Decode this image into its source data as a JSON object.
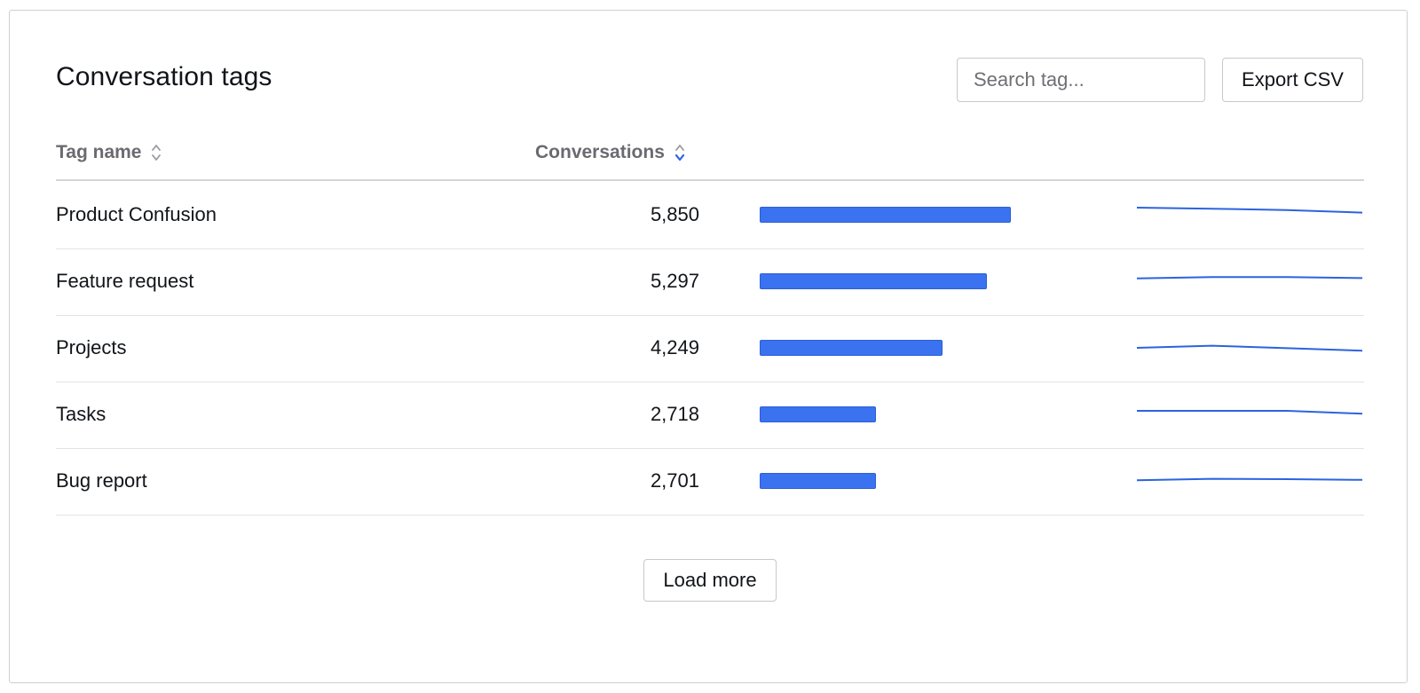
{
  "header": {
    "title": "Conversation tags",
    "search_placeholder": "Search tag...",
    "export_label": "Export CSV"
  },
  "table": {
    "columns": {
      "tag_name": "Tag name",
      "conversations": "Conversations"
    },
    "max_count": 5850,
    "rows": [
      {
        "name": "Product Confusion",
        "count": "5,850",
        "value": 5850,
        "trend": [
          1.0,
          0.97,
          0.93,
          0.86
        ]
      },
      {
        "name": "Feature request",
        "count": "5,297",
        "value": 5297,
        "trend": [
          0.88,
          0.92,
          0.92,
          0.89
        ]
      },
      {
        "name": "Projects",
        "count": "4,249",
        "value": 4249,
        "trend": [
          0.8,
          0.86,
          0.79,
          0.72
        ]
      },
      {
        "name": "Tasks",
        "count": "2,718",
        "value": 2718,
        "trend": [
          0.9,
          0.9,
          0.9,
          0.82
        ]
      },
      {
        "name": "Bug report",
        "count": "2,701",
        "value": 2701,
        "trend": [
          0.82,
          0.86,
          0.85,
          0.83
        ]
      }
    ]
  },
  "footer": {
    "load_more_label": "Load more"
  },
  "colors": {
    "bar": "#3b72f0",
    "sparkline": "#2b63e0",
    "sort_active": "#2b63e0",
    "sort_inactive": "#9a9aa0"
  }
}
